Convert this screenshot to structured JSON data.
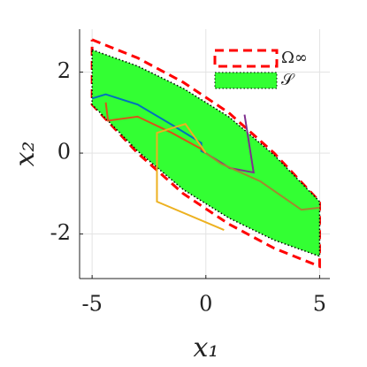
{
  "chart_data": {
    "type": "line",
    "xlabel": "x₁",
    "ylabel": "x₂",
    "xlim": [
      -5.55,
      5.45
    ],
    "ylim": [
      -3.1,
      3.06
    ],
    "xticks": [
      -5,
      0,
      5
    ],
    "yticks": [
      -2,
      0,
      2
    ],
    "grid": true,
    "legend": "northeast",
    "series": [
      {
        "name": "Ω∞",
        "color": "#ff0000",
        "dashed": true,
        "x": [
          -5,
          -3,
          -1,
          1,
          3,
          5,
          5,
          3,
          1,
          -1,
          -3,
          -5,
          -5
        ],
        "values": [
          2.8,
          2.35,
          1.75,
          1.0,
          0.0,
          -1.2,
          -2.8,
          -2.35,
          -1.75,
          -1.0,
          0.0,
          1.2,
          2.8
        ]
      },
      {
        "name": "𝒮",
        "color": "#33ff33",
        "fill": true,
        "x": [
          -5,
          -3,
          -1,
          1,
          3,
          5,
          5,
          3,
          1,
          -1,
          -3,
          -5,
          -5
        ],
        "values": [
          2.55,
          2.15,
          1.6,
          0.9,
          -0.05,
          -1.2,
          -2.55,
          -2.15,
          -1.6,
          -0.9,
          0.05,
          1.2,
          2.55
        ]
      },
      {
        "color": "#0072bd",
        "x": [
          -5,
          -4.4,
          -3,
          -1.5,
          -0.2,
          -0.2,
          0
        ],
        "values": [
          1.35,
          1.45,
          1.2,
          0.7,
          0.25,
          0.05,
          0
        ]
      },
      {
        "color": "#d95319",
        "x": [
          -4.4,
          -4.3,
          -3,
          -1.5,
          -0.2,
          0
        ],
        "values": [
          1.25,
          0.8,
          0.9,
          0.5,
          0.1,
          0
        ]
      },
      {
        "color": "#edb120",
        "x": [
          0.8,
          -2.15,
          -2.15,
          -0.9,
          0
        ],
        "values": [
          -1.9,
          -1.2,
          0.5,
          0.72,
          0
        ]
      },
      {
        "color": "#7e2f8e",
        "x": [
          1.7,
          2.1,
          1.05,
          0.27,
          0
        ],
        "values": [
          0.95,
          -0.48,
          -0.37,
          -0.1,
          0
        ]
      },
      {
        "color": "#a08a30",
        "x": [
          5,
          4.2,
          2.4,
          0.66,
          0
        ],
        "values": [
          -1.35,
          -1.4,
          -0.7,
          -0.26,
          0
        ]
      }
    ]
  }
}
